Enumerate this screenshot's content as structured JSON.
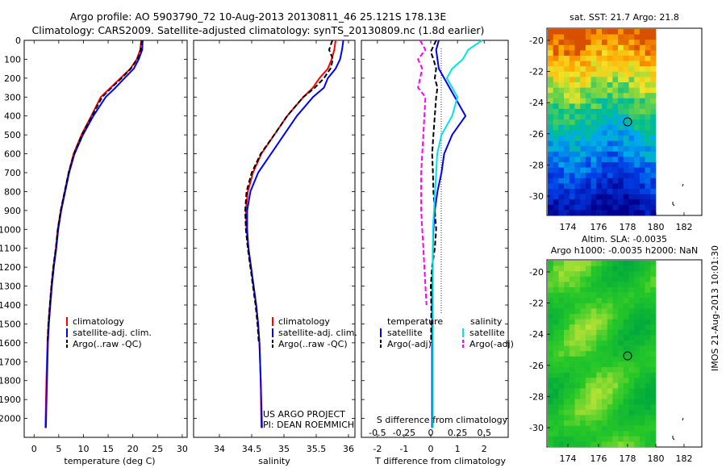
{
  "header": {
    "title_line1": "Argo profile: AO 5903790_72 10-Aug-2013 20130811_46 25.121S 178.13E",
    "title_line2": "Climatology: CARS2009. Satellite-adjusted climatology: synTS_20130809.nc (1.8d earlier)"
  },
  "maps": {
    "sst_title": "sat. SST: 21.7 Argo: 21.8",
    "sla_title_line1": "Altim. SLA: -0.0035",
    "sla_title_line2": "Argo h1000: -0.0035 h2000: NaN",
    "stamp": "IMOS 21-Aug-2013 10:01:30",
    "lon_ticks": [
      "174",
      "176",
      "178",
      "180",
      "182"
    ],
    "lat_ticks": [
      "-20",
      "-22",
      "-24",
      "-26",
      "-28",
      "-30"
    ],
    "argo_position": {
      "lon": 178.13,
      "lat": -25.121
    }
  },
  "annotations": {
    "project_line1": "US ARGO PROJECT",
    "project_line2": "PI: DEAN ROEMMICH"
  },
  "colors": {
    "climatology": "#ff0000",
    "satellite": "#0000ff",
    "argo": "#000000",
    "salinity_satellite": "#00e5e5",
    "salinity_argo": "#ff00ff"
  },
  "chart_data": [
    {
      "type": "line",
      "xlabel": "temperature (deg C)",
      "ylabel": "",
      "xlim": [
        -2,
        31
      ],
      "ylim": [
        2100,
        0
      ],
      "xticks": [
        0,
        5,
        10,
        15,
        20,
        25,
        30
      ],
      "yticks": [
        0,
        100,
        200,
        300,
        400,
        500,
        600,
        700,
        800,
        900,
        1000,
        1100,
        1200,
        1300,
        1400,
        1500,
        1600,
        1700,
        1800,
        1900,
        2000
      ],
      "legend": [
        "climatology",
        "satellite-adj. clim.",
        "Argo(..raw -QC)"
      ],
      "series": [
        {
          "name": "climatology",
          "color": "#ff0000",
          "x": [
            21.7,
            21.5,
            20.8,
            19.5,
            17.5,
            15.5,
            13.5,
            11.6,
            9.6,
            8.0,
            7.0,
            6.2,
            5.4,
            4.8,
            4.4,
            3.9,
            3.5,
            3.2,
            2.9,
            2.7,
            2.5,
            2.3
          ],
          "y": [
            0,
            50,
            100,
            150,
            200,
            250,
            300,
            400,
            500,
            600,
            700,
            800,
            900,
            1000,
            1100,
            1200,
            1300,
            1400,
            1500,
            1600,
            1800,
            2050
          ]
        },
        {
          "name": "satellite-adj. clim.",
          "color": "#0000ff",
          "x": [
            22.0,
            21.9,
            21.2,
            20.2,
            18.3,
            16.5,
            14.5,
            12.0,
            9.9,
            8.2,
            7.1,
            6.3,
            5.5,
            4.9,
            4.5,
            4.0,
            3.6,
            3.3,
            3.0,
            2.8,
            2.6,
            2.4
          ],
          "y": [
            0,
            50,
            100,
            150,
            200,
            250,
            300,
            400,
            500,
            600,
            700,
            800,
            900,
            1000,
            1100,
            1200,
            1300,
            1400,
            1500,
            1600,
            1800,
            2050
          ]
        },
        {
          "name": "Argo(..raw -QC)",
          "color": "#000000",
          "dash": true,
          "x": [
            21.8,
            21.6,
            20.9,
            19.6,
            17.7,
            15.7,
            13.8,
            11.7,
            9.7,
            8.1,
            7.0,
            6.2,
            5.4,
            4.8,
            4.4,
            3.9,
            3.5,
            3.2,
            2.9,
            2.7
          ],
          "y": [
            0,
            50,
            100,
            150,
            200,
            250,
            300,
            400,
            500,
            600,
            700,
            800,
            900,
            1000,
            1100,
            1200,
            1300,
            1400,
            1500,
            1600
          ]
        }
      ]
    },
    {
      "type": "line",
      "xlabel": "salinity",
      "ylabel": "",
      "xlim": [
        33.6,
        36.1
      ],
      "ylim": [
        2100,
        0
      ],
      "xticks": [
        34,
        34.5,
        35,
        35.5,
        36
      ],
      "legend": [
        "climatology",
        "satellite-adj. clim.",
        "Argo(..raw -QC)"
      ],
      "series": [
        {
          "name": "climatology",
          "color": "#ff0000",
          "x": [
            35.8,
            35.78,
            35.74,
            35.68,
            35.55,
            35.45,
            35.3,
            35.05,
            34.85,
            34.65,
            34.52,
            34.44,
            34.41,
            34.42,
            34.45,
            34.49,
            34.53,
            34.57,
            34.6,
            34.62,
            34.64,
            34.65
          ],
          "y": [
            0,
            50,
            100,
            150,
            200,
            250,
            300,
            400,
            500,
            600,
            700,
            800,
            900,
            1000,
            1100,
            1200,
            1300,
            1400,
            1500,
            1600,
            1800,
            2050
          ]
        },
        {
          "name": "satellite-adj. clim.",
          "color": "#0000ff",
          "x": [
            35.92,
            35.9,
            35.87,
            35.8,
            35.68,
            35.62,
            35.45,
            35.2,
            35.0,
            34.8,
            34.6,
            34.48,
            34.43,
            34.43,
            34.45,
            34.49,
            34.53,
            34.57,
            34.6,
            34.62,
            34.64,
            34.66
          ],
          "y": [
            0,
            50,
            100,
            150,
            200,
            250,
            300,
            400,
            500,
            600,
            700,
            800,
            900,
            1000,
            1100,
            1200,
            1300,
            1400,
            1500,
            1600,
            1800,
            2050
          ]
        },
        {
          "name": "Argo(..raw -QC)",
          "color": "#000000",
          "dash": true,
          "x": [
            35.75,
            35.7,
            35.76,
            35.72,
            35.62,
            35.48,
            35.3,
            35.05,
            34.85,
            34.64,
            34.5,
            34.42,
            34.4,
            34.41,
            34.44,
            34.48,
            34.52,
            34.56,
            34.59,
            34.61
          ],
          "y": [
            0,
            50,
            100,
            150,
            200,
            250,
            300,
            400,
            500,
            600,
            700,
            800,
            900,
            1000,
            1100,
            1200,
            1300,
            1400,
            1500,
            1600
          ]
        }
      ]
    },
    {
      "type": "line",
      "title": "",
      "xlabel": "T difference from climatology",
      "xlabel_top": "S difference from climatology",
      "xlim": [
        -2.6,
        2.9
      ],
      "ylim": [
        2100,
        0
      ],
      "xticks": [
        -2,
        -1,
        0,
        1,
        2
      ],
      "xticks_top": [
        -0.5,
        -0.25,
        0,
        0.25,
        0.5
      ],
      "legend": {
        "temperature_header": "temperature",
        "salinity_header": "salinity",
        "entries": [
          "satellite",
          "Argo(-adj)",
          "satellite",
          "Argo(-adj)"
        ]
      },
      "series": [
        {
          "name": "temperature satellite",
          "color": "#0000ff",
          "x": [
            0.3,
            0.2,
            0.25,
            0.3,
            0.5,
            0.7,
            0.9,
            1.3,
            0.8,
            0.5,
            0.4,
            0.25,
            0.15,
            0.1,
            0.08,
            0.07,
            0.06,
            0.05,
            0.05,
            0.05,
            0.05
          ],
          "y": [
            0,
            50,
            100,
            150,
            200,
            250,
            300,
            400,
            500,
            600,
            700,
            800,
            900,
            1000,
            1100,
            1200,
            1300,
            1400,
            1600,
            1800,
            2050
          ]
        },
        {
          "name": "temperature Argo(-adj)",
          "color": "#000000",
          "dash": true,
          "x": [
            0.2,
            0.0,
            0.1,
            0.2,
            0.15,
            0.25,
            0.2,
            0.15,
            0.1,
            0.05,
            0.08,
            0.1,
            0.15,
            0.2,
            0.15,
            0.05,
            0.0,
            0.02,
            0.01
          ],
          "y": [
            0,
            60,
            100,
            150,
            200,
            250,
            300,
            400,
            500,
            600,
            700,
            800,
            900,
            1000,
            1100,
            1200,
            1300,
            1400,
            1600
          ]
        },
        {
          "name": "salinity satellite",
          "color": "#00e5e5",
          "x": [
            0.48,
            0.35,
            0.3,
            0.2,
            0.15,
            0.25,
            0.2,
            0.1,
            0.06,
            0.05,
            0.04,
            0.03,
            0.02,
            0.02,
            0.02,
            0.02,
            0.02,
            0.02
          ],
          "y": [
            0,
            50,
            100,
            150,
            200,
            300,
            400,
            500,
            600,
            700,
            800,
            900,
            1000,
            1200,
            1400,
            1600,
            1800,
            2050
          ]
        },
        {
          "name": "salinity Argo(-adj)",
          "color": "#ff00ff",
          "dash": true,
          "x": [
            -0.1,
            -0.05,
            -0.12,
            -0.08,
            -0.12,
            -0.05,
            -0.06,
            -0.07,
            -0.08,
            -0.09,
            -0.09,
            -0.09,
            -0.08,
            -0.07,
            -0.06,
            -0.05,
            -0.04
          ],
          "y": [
            0,
            50,
            100,
            150,
            250,
            300,
            400,
            500,
            600,
            700,
            800,
            900,
            1000,
            1100,
            1200,
            1300,
            1400
          ]
        }
      ]
    }
  ]
}
